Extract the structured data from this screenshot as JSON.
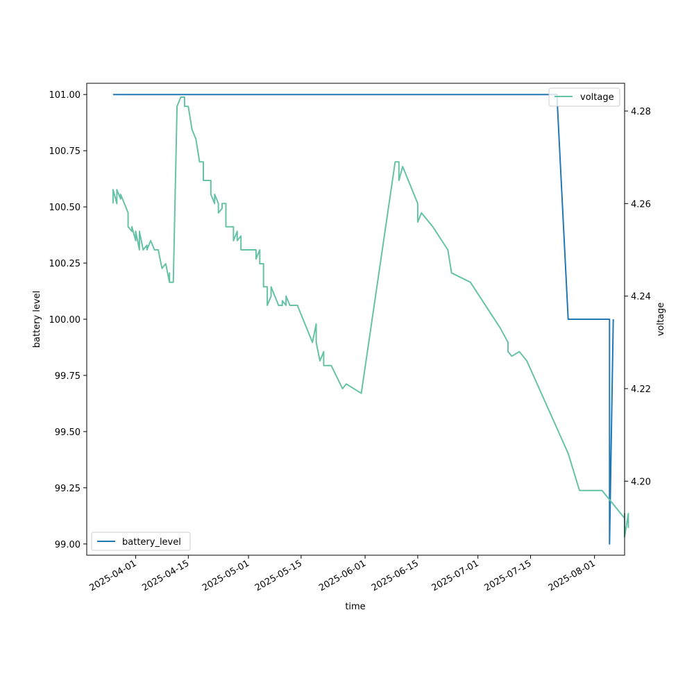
{
  "chart_data": {
    "type": "line",
    "title": "",
    "xlabel": "time",
    "ylabel_left": "battery level",
    "ylabel_right": "voltage",
    "x_ticks": [
      "2025-04-01",
      "2025-04-15",
      "2025-05-01",
      "2025-05-15",
      "2025-06-01",
      "2025-06-15",
      "2025-07-01",
      "2025-07-15",
      "2025-08-01"
    ],
    "y_left_ticks": [
      "99.00",
      "99.25",
      "99.50",
      "99.75",
      "100.00",
      "100.25",
      "100.50",
      "100.75",
      "101.00"
    ],
    "y_right_ticks": [
      "4.20",
      "4.22",
      "4.24",
      "4.26",
      "4.28"
    ],
    "x_range": [
      "2025-03-19",
      "2025-08-09"
    ],
    "y_left_range": [
      98.95,
      101.05
    ],
    "y_right_range": [
      4.184,
      4.286
    ],
    "grid": false,
    "series": [
      {
        "name": "battery_level",
        "axis": "left",
        "color": "#1f77b4",
        "legend_position": "lower-left",
        "points": [
          [
            "2025-03-26",
            101.0
          ],
          [
            "2025-07-22",
            101.0
          ],
          [
            "2025-07-25",
            100.0
          ],
          [
            "2025-08-05",
            100.0
          ],
          [
            "2025-08-05",
            99.0
          ],
          [
            "2025-08-06",
            100.0
          ],
          [
            "2025-08-06",
            100.0
          ]
        ]
      },
      {
        "name": "voltage",
        "axis": "right",
        "color": "#66c2a5",
        "legend_position": "upper-right",
        "points": [
          [
            "2025-03-26",
            4.26
          ],
          [
            "2025-03-26",
            4.263
          ],
          [
            "2025-03-27",
            4.26
          ],
          [
            "2025-03-27",
            4.263
          ],
          [
            "2025-03-28",
            4.261
          ],
          [
            "2025-03-28",
            4.262
          ],
          [
            "2025-03-29",
            4.26
          ],
          [
            "2025-03-30",
            4.258
          ],
          [
            "2025-03-30",
            4.255
          ],
          [
            "2025-03-31",
            4.254
          ],
          [
            "2025-03-31",
            4.255
          ],
          [
            "2025-04-01",
            4.252
          ],
          [
            "2025-04-01",
            4.254
          ],
          [
            "2025-04-02",
            4.25
          ],
          [
            "2025-04-02",
            4.254
          ],
          [
            "2025-04-03",
            4.25
          ],
          [
            "2025-04-04",
            4.251
          ],
          [
            "2025-04-04",
            4.25
          ],
          [
            "2025-04-05",
            4.252
          ],
          [
            "2025-04-06",
            4.25
          ],
          [
            "2025-04-07",
            4.25
          ],
          [
            "2025-04-08",
            4.246
          ],
          [
            "2025-04-09",
            4.247
          ],
          [
            "2025-04-10",
            4.243
          ],
          [
            "2025-04-10",
            4.245
          ],
          [
            "2025-04-10",
            4.243
          ],
          [
            "2025-04-11",
            4.243
          ],
          [
            "2025-04-12",
            4.281
          ],
          [
            "2025-04-13",
            4.283
          ],
          [
            "2025-04-14",
            4.283
          ],
          [
            "2025-04-14",
            4.281
          ],
          [
            "2025-04-15",
            4.281
          ],
          [
            "2025-04-16",
            4.276
          ],
          [
            "2025-04-17",
            4.274
          ],
          [
            "2025-04-18",
            4.269
          ],
          [
            "2025-04-19",
            4.269
          ],
          [
            "2025-04-19",
            4.265
          ],
          [
            "2025-04-20",
            4.265
          ],
          [
            "2025-04-21",
            4.265
          ],
          [
            "2025-04-21",
            4.262
          ],
          [
            "2025-04-22",
            4.26
          ],
          [
            "2025-04-22",
            4.262
          ],
          [
            "2025-04-23",
            4.26
          ],
          [
            "2025-04-23",
            4.258
          ],
          [
            "2025-04-24",
            4.259
          ],
          [
            "2025-04-24",
            4.26
          ],
          [
            "2025-04-25",
            4.26
          ],
          [
            "2025-04-25",
            4.255
          ],
          [
            "2025-04-26",
            4.255
          ],
          [
            "2025-04-27",
            4.255
          ],
          [
            "2025-04-27",
            4.252
          ],
          [
            "2025-04-28",
            4.254
          ],
          [
            "2025-04-28",
            4.252
          ],
          [
            "2025-04-29",
            4.253
          ],
          [
            "2025-04-29",
            4.25
          ],
          [
            "2025-04-30",
            4.25
          ],
          [
            "2025-05-01",
            4.25
          ],
          [
            "2025-05-02",
            4.25
          ],
          [
            "2025-05-03",
            4.25
          ],
          [
            "2025-05-03",
            4.248
          ],
          [
            "2025-05-04",
            4.25
          ],
          [
            "2025-05-04",
            4.247
          ],
          [
            "2025-05-05",
            4.247
          ],
          [
            "2025-05-05",
            4.242
          ],
          [
            "2025-05-06",
            4.242
          ],
          [
            "2025-05-06",
            4.238
          ],
          [
            "2025-05-07",
            4.24
          ],
          [
            "2025-05-07",
            4.242
          ],
          [
            "2025-05-08",
            4.24
          ],
          [
            "2025-05-09",
            4.238
          ],
          [
            "2025-05-10",
            4.238
          ],
          [
            "2025-05-10",
            4.239
          ],
          [
            "2025-05-11",
            4.238
          ],
          [
            "2025-05-11",
            4.24
          ],
          [
            "2025-05-12",
            4.238
          ],
          [
            "2025-05-13",
            4.238
          ],
          [
            "2025-05-14",
            4.238
          ],
          [
            "2025-05-18",
            4.23
          ],
          [
            "2025-05-19",
            4.234
          ],
          [
            "2025-05-19",
            4.23
          ],
          [
            "2025-05-20",
            4.226
          ],
          [
            "2025-05-21",
            4.228
          ],
          [
            "2025-05-21",
            4.225
          ],
          [
            "2025-05-23",
            4.225
          ],
          [
            "2025-05-26",
            4.22
          ],
          [
            "2025-05-27",
            4.221
          ],
          [
            "2025-05-31",
            4.219
          ],
          [
            "2025-06-09",
            4.269
          ],
          [
            "2025-06-10",
            4.269
          ],
          [
            "2025-06-10",
            4.265
          ],
          [
            "2025-06-11",
            4.268
          ],
          [
            "2025-06-15",
            4.26
          ],
          [
            "2025-06-15",
            4.256
          ],
          [
            "2025-06-16",
            4.258
          ],
          [
            "2025-06-19",
            4.255
          ],
          [
            "2025-06-23",
            4.25
          ],
          [
            "2025-06-24",
            4.245
          ],
          [
            "2025-06-29",
            4.243
          ],
          [
            "2025-07-07",
            4.233
          ],
          [
            "2025-07-09",
            4.23
          ],
          [
            "2025-07-09",
            4.228
          ],
          [
            "2025-07-10",
            4.227
          ],
          [
            "2025-07-12",
            4.228
          ],
          [
            "2025-07-14",
            4.226
          ],
          [
            "2025-07-25",
            4.206
          ],
          [
            "2025-07-28",
            4.198
          ],
          [
            "2025-08-03",
            4.198
          ],
          [
            "2025-08-09",
            4.192
          ],
          [
            "2025-08-09",
            4.193
          ],
          [
            "2025-08-09",
            4.188
          ],
          [
            "2025-08-10",
            4.193
          ],
          [
            "2025-08-10",
            4.19
          ],
          [
            "2025-08-10",
            4.191
          ]
        ]
      }
    ]
  }
}
